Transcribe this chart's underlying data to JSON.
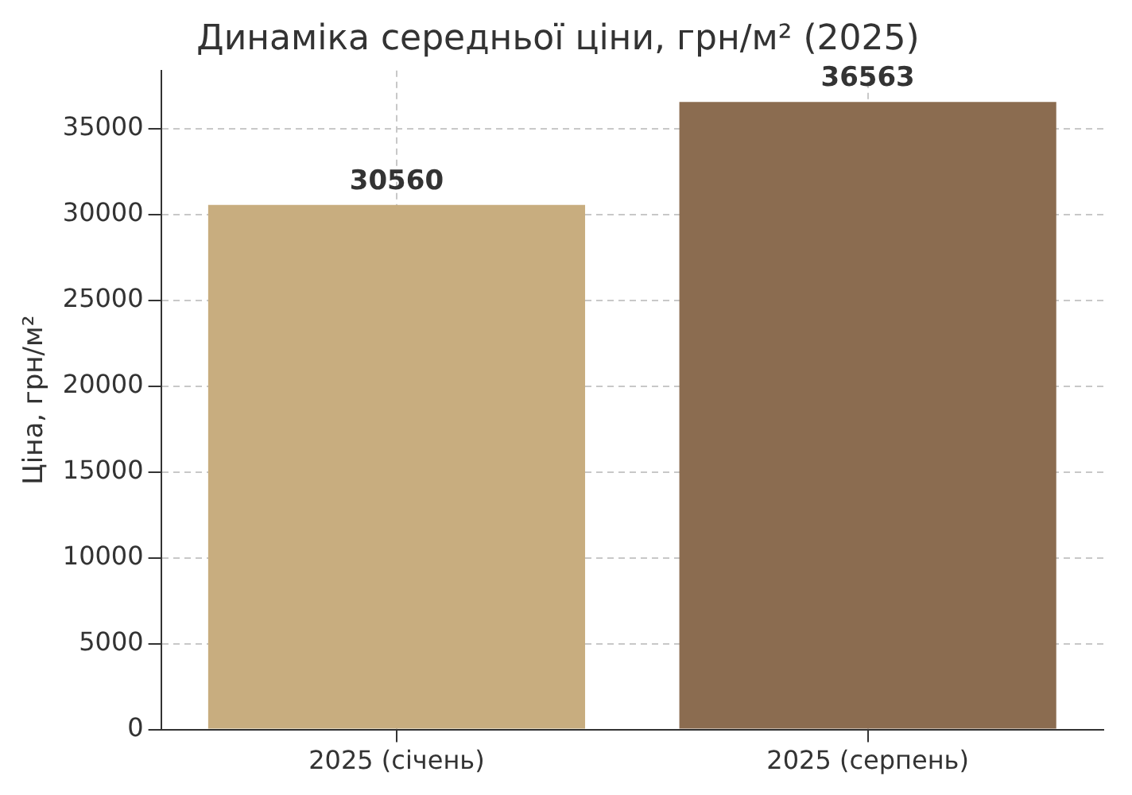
{
  "chart_data": {
    "type": "bar",
    "title": "Динаміка середньої ціни, грн/м² (2025)",
    "ylabel": "Ціна, грн/м²",
    "categories": [
      "2025 (січень)",
      "2025 (серпень)"
    ],
    "values": [
      30560,
      36563
    ],
    "colors": [
      "#c8ad7f",
      "#8b6c50"
    ],
    "ylim": [
      0,
      38391
    ],
    "yticks": [
      0,
      5000,
      10000,
      15000,
      20000,
      25000,
      30000,
      35000
    ],
    "grid": true,
    "data_labels": true
  }
}
